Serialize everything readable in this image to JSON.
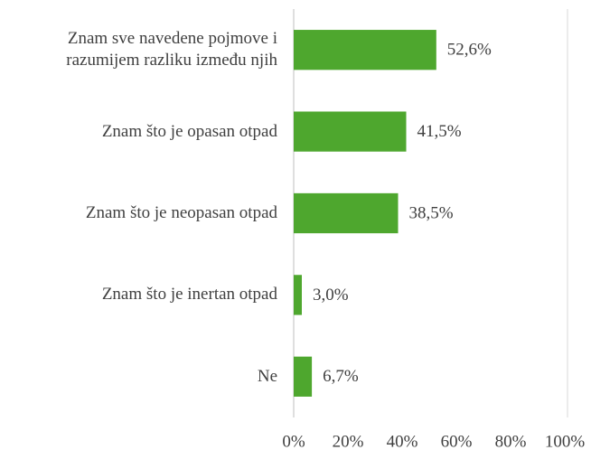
{
  "chart_data": {
    "type": "bar",
    "orientation": "horizontal",
    "categories": [
      "Znam sve navedene pojmove i razumijem razliku između njih",
      "Znam što je opasan otpad",
      "Znam što je neopasan otpad",
      "Znam što je inertan otpad",
      "Ne"
    ],
    "values": [
      52.6,
      41.5,
      38.5,
      3.0,
      6.7
    ],
    "value_labels": [
      "52,6%",
      "41,5%",
      "38,5%",
      "3,0%",
      "6,7%"
    ],
    "color": "#4ea72e",
    "xlim": [
      0,
      100
    ],
    "xticks": [
      {
        "value": 0,
        "label": "0%"
      },
      {
        "value": 20,
        "label": "20%"
      },
      {
        "value": 40,
        "label": "40%"
      },
      {
        "value": 60,
        "label": "60%"
      },
      {
        "value": 80,
        "label": "80%"
      },
      {
        "value": 100,
        "label": "100%"
      }
    ],
    "grid": false
  }
}
